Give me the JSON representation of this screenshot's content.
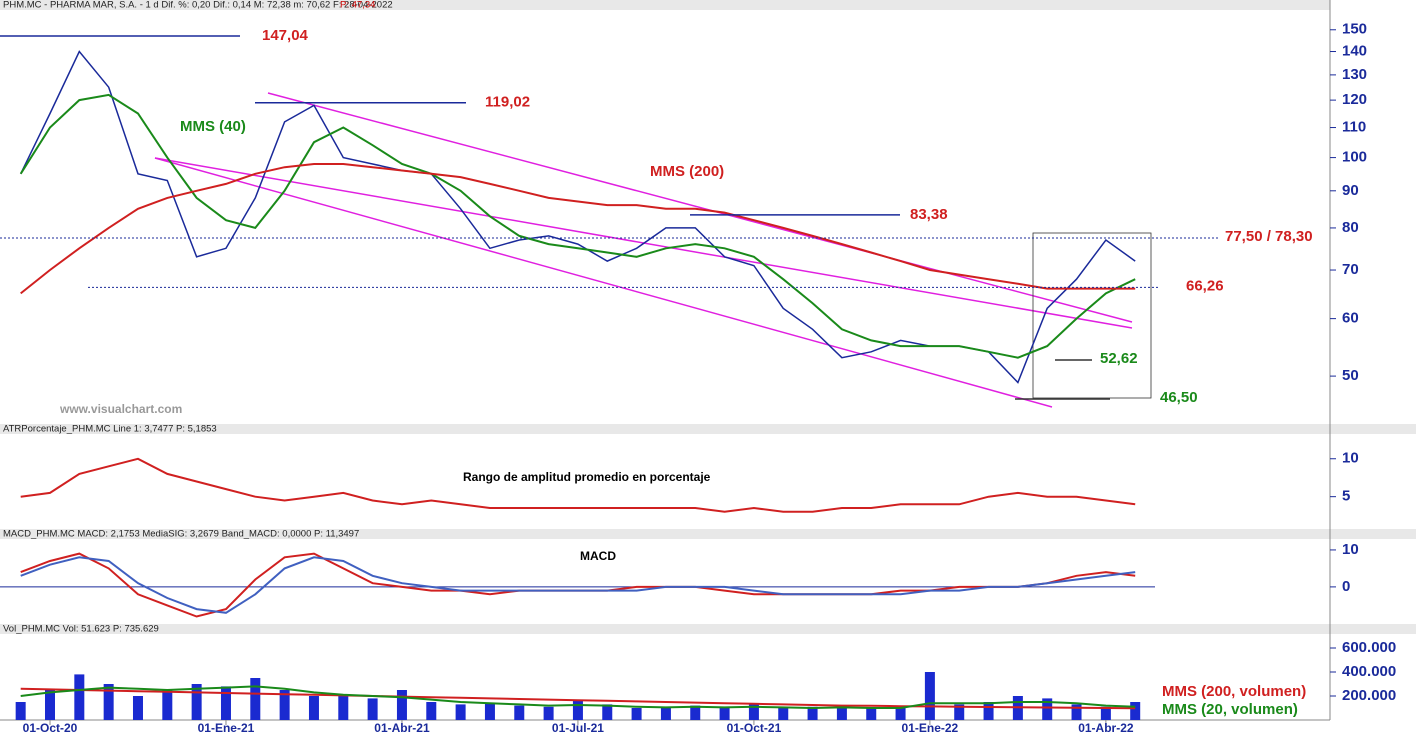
{
  "header": [
    "PHM.MC - PHARMA MAR, S.A. - 1 d Dif. %: 0,20 Dif.: 0,14 M: 72,38 m: 70,62 F: 28-04-2022",
    "P: 47,34",
    "ATRPorcentaje_PHM.MC Line 1: 3,7477 P: 5,1853",
    "MACD_PHM.MC MACD: 2,1753 MediaSIG: 3,2679 Band_MACD: 0,0000 P: 11,3497",
    "Vol_PHM.MC Vol: 51.623 P: 735.629"
  ],
  "watermark": "www.visualchart.com",
  "chart_data": [
    {
      "type": "line",
      "log_scale": true,
      "ylim": [
        43.5,
        158.7
      ],
      "yticks": [
        50,
        60,
        70,
        80,
        90,
        100,
        110,
        120,
        130,
        140,
        150
      ],
      "series": [
        {
          "color": "#1a2a9a",
          "values": [
            95,
            115,
            140,
            125,
            95,
            93,
            73,
            75,
            88,
            112,
            118,
            100,
            98,
            96,
            95,
            85,
            75,
            77,
            78,
            76,
            72,
            75,
            80,
            80,
            73,
            71,
            62,
            58,
            53,
            54,
            56,
            55,
            55,
            54,
            49,
            62,
            68,
            77,
            72
          ]
        },
        {
          "name": "MMS (40)",
          "color": "#1a8a1a",
          "values": [
            95,
            110,
            120,
            122,
            115,
            100,
            88,
            82,
            80,
            90,
            105,
            110,
            104,
            98,
            95,
            90,
            83,
            78,
            76,
            75,
            74,
            73,
            75,
            76,
            75,
            73,
            68,
            63,
            58,
            56,
            55,
            55,
            55,
            54,
            53,
            55,
            60,
            65,
            68
          ]
        },
        {
          "name": "MMS (200)",
          "color": "#d02020",
          "values": [
            65,
            70,
            75,
            80,
            85,
            88,
            90,
            92,
            95,
            97,
            98,
            98,
            97,
            96,
            95,
            94,
            92,
            90,
            88,
            87,
            86,
            86,
            85,
            85,
            84,
            82,
            80,
            78,
            76,
            74,
            72,
            70,
            69,
            68,
            67,
            66,
            66,
            66,
            66
          ]
        }
      ],
      "annotations": [
        {
          "text": "147,04",
          "value": 147.04,
          "color": "#d02020"
        },
        {
          "text": "119,02",
          "value": 119.02,
          "color": "#d02020"
        },
        {
          "text": "83,38",
          "value": 83.38,
          "color": "#d02020"
        },
        {
          "text": "77,50 / 78,30",
          "value": 77.5,
          "color": "#d02020"
        },
        {
          "text": "66,26",
          "value": 66.26,
          "color": "#d02020"
        },
        {
          "text": "52,62",
          "value": 52.62,
          "color": "#1a8a1a"
        },
        {
          "text": "46,50",
          "value": 46.5,
          "color": "#1a8a1a"
        }
      ]
    },
    {
      "type": "line",
      "title": "Rango de amplitud promedio en porcentaje",
      "ylim": [
        1,
        13
      ],
      "yticks": [
        5,
        10
      ],
      "series": [
        {
          "color": "#d02020",
          "values": [
            5,
            5.5,
            8,
            9,
            10,
            8,
            7,
            6,
            5,
            4.5,
            5,
            5.5,
            4.5,
            4,
            4.5,
            4,
            3.5,
            3.5,
            3.5,
            3.5,
            3.5,
            3.5,
            3.5,
            3.5,
            3,
            3.5,
            3,
            3,
            3.5,
            3.5,
            4,
            4,
            4,
            5,
            5.5,
            5,
            5,
            4.5,
            4
          ]
        }
      ]
    },
    {
      "type": "line",
      "title": "MACD",
      "ylim": [
        -9.5,
        13.5
      ],
      "yticks": [
        0,
        10
      ],
      "series": [
        {
          "color": "#d02020",
          "values": [
            4,
            7,
            9,
            5,
            -2,
            -5,
            -8,
            -6,
            2,
            8,
            9,
            5,
            1,
            0,
            -1,
            -1,
            -2,
            -1,
            -1,
            -1,
            -1,
            0,
            0,
            0,
            -1,
            -2,
            -2,
            -2,
            -2,
            -2,
            -1,
            -1,
            0,
            0,
            0,
            1,
            3,
            4,
            3
          ]
        },
        {
          "color": "#4060c0",
          "values": [
            3,
            6,
            8,
            7,
            1,
            -3,
            -6,
            -7,
            -2,
            5,
            8,
            7,
            3,
            1,
            0,
            -1,
            -1,
            -1,
            -1,
            -1,
            -1,
            -1,
            0,
            0,
            0,
            -1,
            -2,
            -2,
            -2,
            -2,
            -2,
            -1,
            -1,
            0,
            0,
            1,
            2,
            3,
            4
          ]
        }
      ]
    },
    {
      "type": "bar",
      "ylim": [
        0,
        700000
      ],
      "yticks": [
        {
          "value": 200000,
          "label": "200.000"
        },
        {
          "value": 400000,
          "label": "400.000"
        },
        {
          "value": 600000,
          "label": "600.000"
        }
      ],
      "categories": [
        null,
        "01-Oct-20",
        null,
        null,
        null,
        null,
        null,
        "01-Ene-21",
        null,
        null,
        null,
        null,
        null,
        "01-Abr-21",
        null,
        null,
        null,
        null,
        null,
        "01-Jul-21",
        null,
        null,
        null,
        null,
        null,
        "01-Oct-21",
        null,
        null,
        null,
        null,
        null,
        "01-Ene-22",
        null,
        null,
        null,
        null,
        null,
        "01-Abr-22",
        null
      ],
      "values": [
        150000,
        250000,
        380000,
        300000,
        200000,
        250000,
        300000,
        280000,
        350000,
        250000,
        200000,
        200000,
        180000,
        250000,
        150000,
        130000,
        140000,
        120000,
        110000,
        160000,
        130000,
        100000,
        110000,
        120000,
        100000,
        140000,
        100000,
        110000,
        120000,
        100000,
        110000,
        400000,
        130000,
        150000,
        200000,
        180000,
        130000,
        110000,
        150000
      ],
      "color": "#1a2ad0",
      "series": [
        {
          "name": "MMS (200, volumen)",
          "color": "#d02020",
          "values": [
            260000,
            255000,
            250000,
            245000,
            240000,
            235000,
            230000,
            225000,
            220000,
            215000,
            210000,
            205000,
            200000,
            195000,
            190000,
            185000,
            180000,
            175000,
            170000,
            165000,
            160000,
            155000,
            150000,
            145000,
            140000,
            135000,
            130000,
            125000,
            120000,
            118000,
            115000,
            113000,
            110000,
            108000,
            106000,
            104000,
            102000,
            100000,
            98000
          ]
        },
        {
          "name": "MMS (20, volumen)",
          "color": "#1a8a1a",
          "values": [
            200000,
            230000,
            250000,
            270000,
            260000,
            250000,
            260000,
            270000,
            280000,
            260000,
            230000,
            210000,
            200000,
            190000,
            170000,
            150000,
            140000,
            130000,
            120000,
            125000,
            120000,
            110000,
            105000,
            110000,
            105000,
            110000,
            105000,
            100000,
            105000,
            100000,
            100000,
            140000,
            140000,
            140000,
            150000,
            150000,
            140000,
            120000,
            110000
          ]
        }
      ]
    }
  ]
}
